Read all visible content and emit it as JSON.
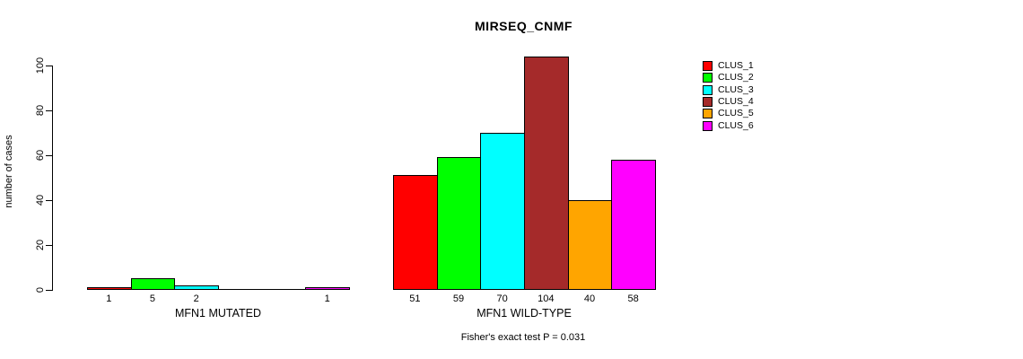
{
  "chart_data": {
    "type": "bar",
    "title": "MIRSEQ_CNMF",
    "ylabel": "number of cases",
    "xlabel": "",
    "ylim": [
      0,
      100
    ],
    "yticks": [
      0,
      20,
      40,
      60,
      80,
      100
    ],
    "grid": false,
    "legend_position": "right",
    "annotation": "Fisher's exact test P = 0.031",
    "categories": [
      "MFN1 MUTATED",
      "MFN1 WILD-TYPE"
    ],
    "series": [
      {
        "name": "CLUS_1",
        "color": "#FF0000",
        "values": [
          1,
          51
        ]
      },
      {
        "name": "CLUS_2",
        "color": "#00FF00",
        "values": [
          5,
          59
        ]
      },
      {
        "name": "CLUS_3",
        "color": "#00FFFF",
        "values": [
          2,
          70
        ]
      },
      {
        "name": "CLUS_4",
        "color": "#A52A2A",
        "values": [
          0,
          104
        ]
      },
      {
        "name": "CLUS_5",
        "color": "#FFA500",
        "values": [
          0,
          40
        ]
      },
      {
        "name": "CLUS_6",
        "color": "#FF00FF",
        "values": [
          1,
          58
        ]
      }
    ],
    "bar_value_labels": {
      "MFN1 MUTATED": [
        "1",
        "5",
        "2",
        "",
        "",
        "1"
      ],
      "MFN1 WILD-TYPE": [
        "51",
        "59",
        "70",
        "104",
        "40",
        "58"
      ]
    }
  }
}
